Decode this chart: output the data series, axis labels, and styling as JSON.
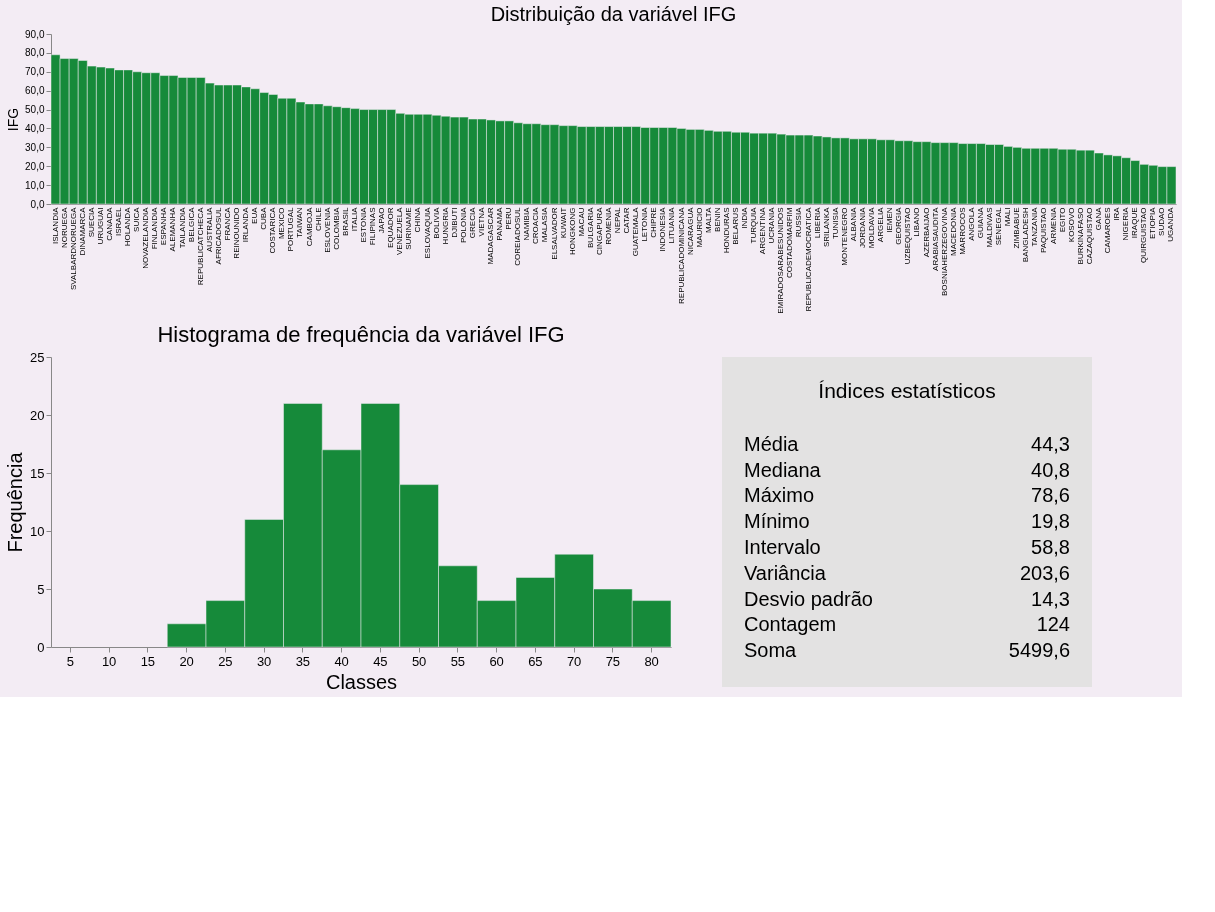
{
  "chart_data": [
    {
      "type": "bar",
      "title": "Distribuição da variável IFG",
      "ylabel": "IFG",
      "grid": false,
      "legend": false,
      "categories": [
        "ISLANDIA",
        "NORUEGA",
        "SVALBARDNORUEGA",
        "DINAMARCA",
        "SUECIA",
        "URUGUAI",
        "CANADA",
        "ISRAEL",
        "HOLANDA",
        "SUICA",
        "NOVAZELANDIA",
        "FINLANDIA",
        "ESPANHA",
        "ALEMANHA",
        "TAILANDIA",
        "BELGICA",
        "REPUBLICATCHECA",
        "AUSTRALIA",
        "AFRICADOSUL",
        "FRANCA",
        "REINOUNIDO",
        "IRLANDA",
        "EUA",
        "CUBA",
        "COSTARICA",
        "MEXICO",
        "PORTUGAL",
        "TAIWAN",
        "CAMBOJA",
        "CHILE",
        "ESLOVENIA",
        "COLOMBIA",
        "BRASIL",
        "ITALIA",
        "ESTONIA",
        "FILIPINAS",
        "JAPAO",
        "EQUADOR",
        "VENEZUELA",
        "SURINAME",
        "CHINA",
        "ESLOVAQUIA",
        "BOLIVIA",
        "HUNGRIA",
        "DJIBUTI",
        "POLONIA",
        "GRECIA",
        "VIETNA",
        "MADAGASCAR",
        "PANAMA",
        "PERU",
        "COREIADOSUL",
        "NAMIBIA",
        "CROACIA",
        "MALASIA",
        "ELSALVADOR",
        "KUWAIT",
        "HONGKONG",
        "MACAU",
        "BULGARIA",
        "CINGAPURA",
        "ROMENIA",
        "NEPAL",
        "CATAR",
        "GUATEMALA",
        "LETONIA",
        "CHIPRE",
        "INDONESIA",
        "LITUANIA",
        "REPUBLICADOMINICANA",
        "NICARAGUA",
        "MAURICIO",
        "MALTA",
        "BENIN",
        "HONDURAS",
        "BELARUS",
        "INDIA",
        "TURQUIA",
        "ARGENTINA",
        "UCRANIA",
        "EMIRADOSARABESUNIDOS",
        "COSTADOMARFIM",
        "RUSSIA",
        "REPUBLICADEMOCRATICA",
        "LIBERIA",
        "SRILANKA",
        "TUNISIA",
        "MONTENEGRO",
        "ALBANIA",
        "JORDANIA",
        "MOLDAVIA",
        "ARGELIA",
        "IEMEN",
        "GEORGIA",
        "UZBEQUISTAO",
        "LIBANO",
        "AZERBAIJAO",
        "ARABIASAUDITA",
        "BOSNIAHERZEGOVINA",
        "MACEDONIA",
        "MARROCOS",
        "ANGOLA",
        "GUIANA",
        "MALDIVAS",
        "SENEGAL",
        "MALI",
        "ZIMBABUE",
        "BANGLADESH",
        "TANZANIA",
        "PAQUISTAO",
        "ARMENIA",
        "EGITO",
        "KOSOVO",
        "BURKINAFASO",
        "CAZAQUISTAO",
        "GANA",
        "CAMAROES",
        "IRA",
        "NIGERIA",
        "IRAQUE",
        "QUIRGUISTAO",
        "ETIOPIA",
        "SUDAO",
        "UGANDA"
      ],
      "series": [
        {
          "color": "#168a3a",
          "values": [
            79,
            77,
            77,
            76,
            73,
            72.5,
            72,
            71,
            71,
            70,
            69.5,
            69.5,
            68,
            68,
            67,
            67,
            67,
            64,
            63,
            63,
            63,
            62,
            61,
            59,
            58,
            56,
            56,
            54,
            53,
            53,
            52,
            51.5,
            51,
            50.5,
            50,
            50,
            50,
            50,
            48,
            47.5,
            47.5,
            47.5,
            47,
            46.5,
            46,
            46,
            45,
            45,
            44.5,
            44,
            44,
            43,
            42.5,
            42.5,
            42,
            42,
            41.5,
            41.5,
            41,
            41,
            41,
            41,
            41,
            41,
            41,
            40.5,
            40.5,
            40.5,
            40.5,
            40,
            39.5,
            39.5,
            39,
            38.5,
            38.5,
            38,
            38,
            37.5,
            37.5,
            37.5,
            37,
            36.5,
            36.5,
            36.5,
            36,
            35.5,
            35,
            35,
            34.5,
            34.5,
            34.5,
            34,
            34,
            33.5,
            33.5,
            33,
            33,
            32.5,
            32.5,
            32.5,
            32,
            32,
            32,
            31.5,
            31.5,
            30.5,
            30,
            29.5,
            29.5,
            29.5,
            29.5,
            29,
            29,
            28.5,
            28.5,
            27,
            26,
            25.5,
            24.5,
            23,
            21,
            20.5,
            19.8,
            19.8
          ]
        }
      ],
      "ylim": [
        0,
        90
      ],
      "yticks": [
        {
          "value": 0,
          "label": "0,0"
        },
        {
          "value": 10,
          "label": "10,0"
        },
        {
          "value": 20,
          "label": "20,0"
        },
        {
          "value": 30,
          "label": "30,0"
        },
        {
          "value": 40,
          "label": "40,0"
        },
        {
          "value": 50,
          "label": "50,0"
        },
        {
          "value": 60,
          "label": "60,0"
        },
        {
          "value": 70,
          "label": "70,0"
        },
        {
          "value": 80,
          "label": "80,0"
        },
        {
          "value": 90,
          "label": "90,0"
        }
      ]
    },
    {
      "type": "bar",
      "title": "Histograma de frequência da variável IFG",
      "xlabel": "Classes",
      "ylabel": "Frequência",
      "grid": false,
      "legend": false,
      "categories": [
        "5",
        "10",
        "15",
        "20",
        "25",
        "30",
        "35",
        "40",
        "45",
        "50",
        "55",
        "60",
        "65",
        "70",
        "75",
        "80"
      ],
      "series": [
        {
          "color": "#168a3a",
          "values": [
            0,
            0,
            0,
            2,
            4,
            11,
            21,
            17,
            21,
            14,
            7,
            4,
            6,
            8,
            5,
            4
          ]
        }
      ],
      "ylim": [
        0,
        25
      ],
      "yticks": [
        0,
        5,
        10,
        15,
        20,
        25
      ]
    },
    {
      "type": "other",
      "title": "Índices estatísticos",
      "annotations": [
        "Média",
        "44,3",
        "Mediana",
        "40,8",
        "Máximo",
        "78,6",
        "Mínimo",
        "19,8",
        "Intervalo",
        "58,8",
        "Variância",
        "203,6",
        "Desvio padrão",
        "14,3",
        "Contagem",
        "124",
        "Soma",
        "5499,6"
      ]
    }
  ]
}
